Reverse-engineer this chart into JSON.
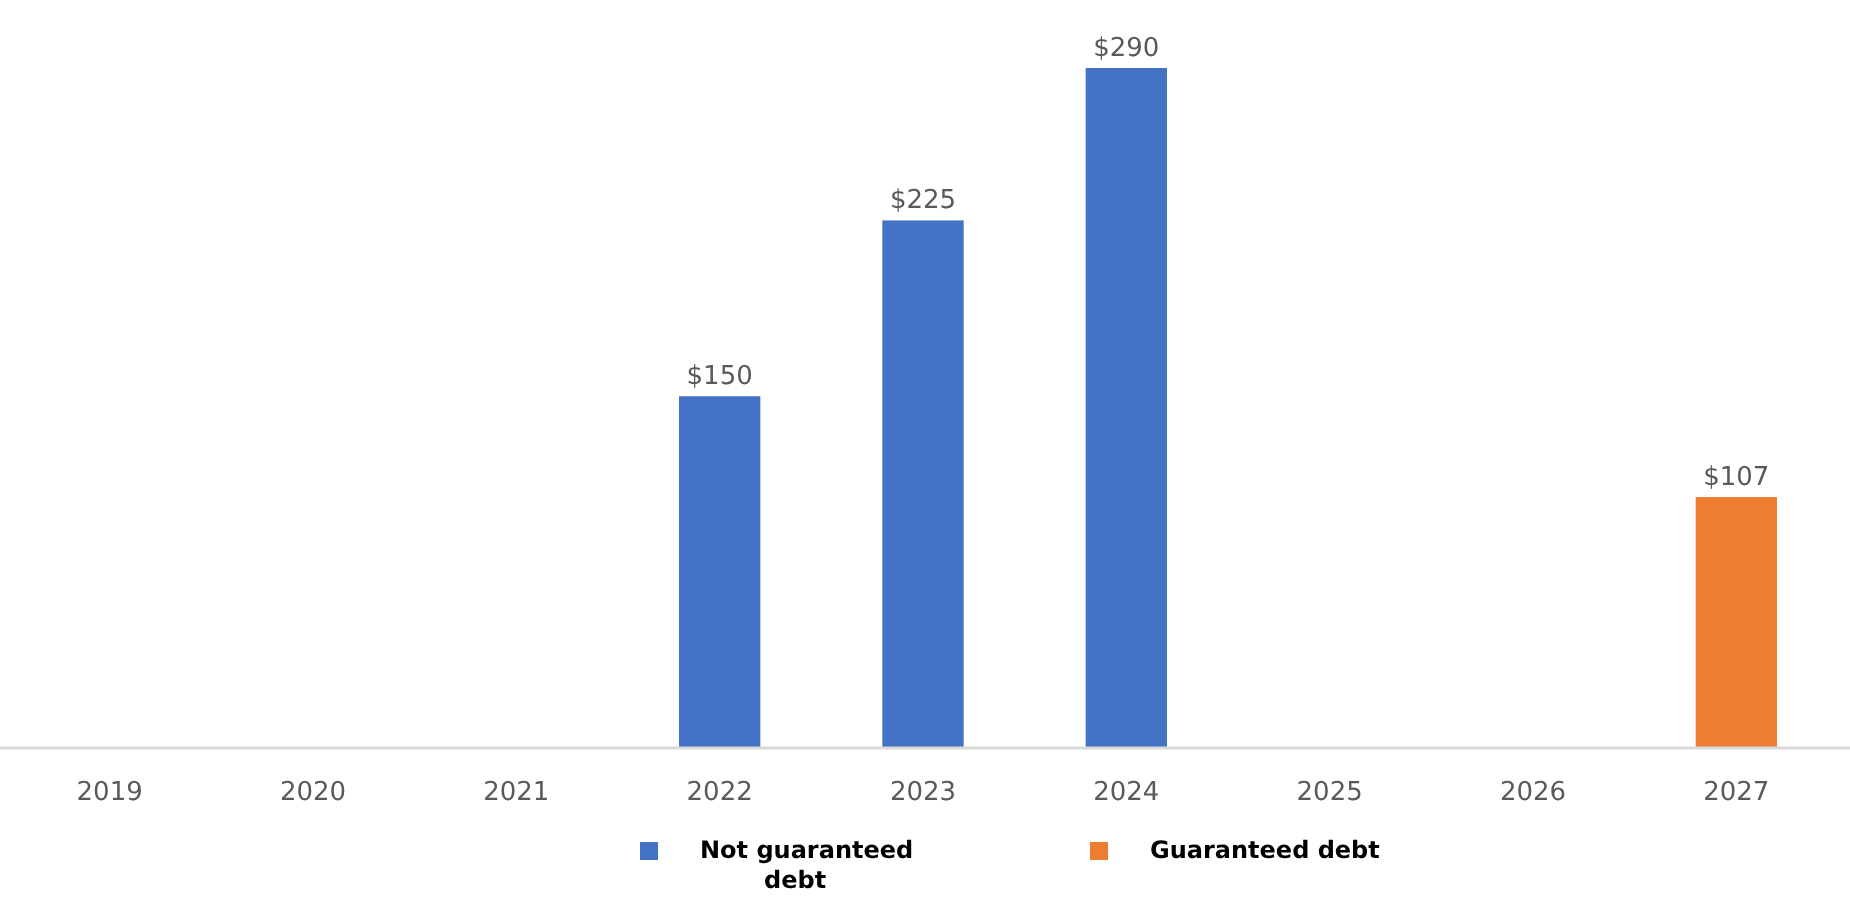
{
  "chart_data": {
    "type": "bar",
    "stacked": true,
    "legend": "bottom",
    "categories": [
      "2019",
      "2020",
      "2021",
      "2022",
      "2023",
      "2024",
      "2025",
      "2026",
      "2027"
    ],
    "series": [
      {
        "name": "Not guaranteed debt",
        "color": "#4472c4",
        "values": [
          null,
          null,
          null,
          150,
          225,
          290,
          null,
          null,
          null
        ],
        "value_labels": [
          null,
          null,
          null,
          "$150",
          "$225",
          "$290",
          null,
          null,
          null
        ]
      },
      {
        "name": "Guaranteed debt",
        "color": "#ed7d31",
        "values": [
          null,
          null,
          null,
          null,
          null,
          null,
          null,
          null,
          107
        ],
        "value_labels": [
          null,
          null,
          null,
          null,
          null,
          null,
          null,
          null,
          "$107"
        ]
      }
    ]
  }
}
